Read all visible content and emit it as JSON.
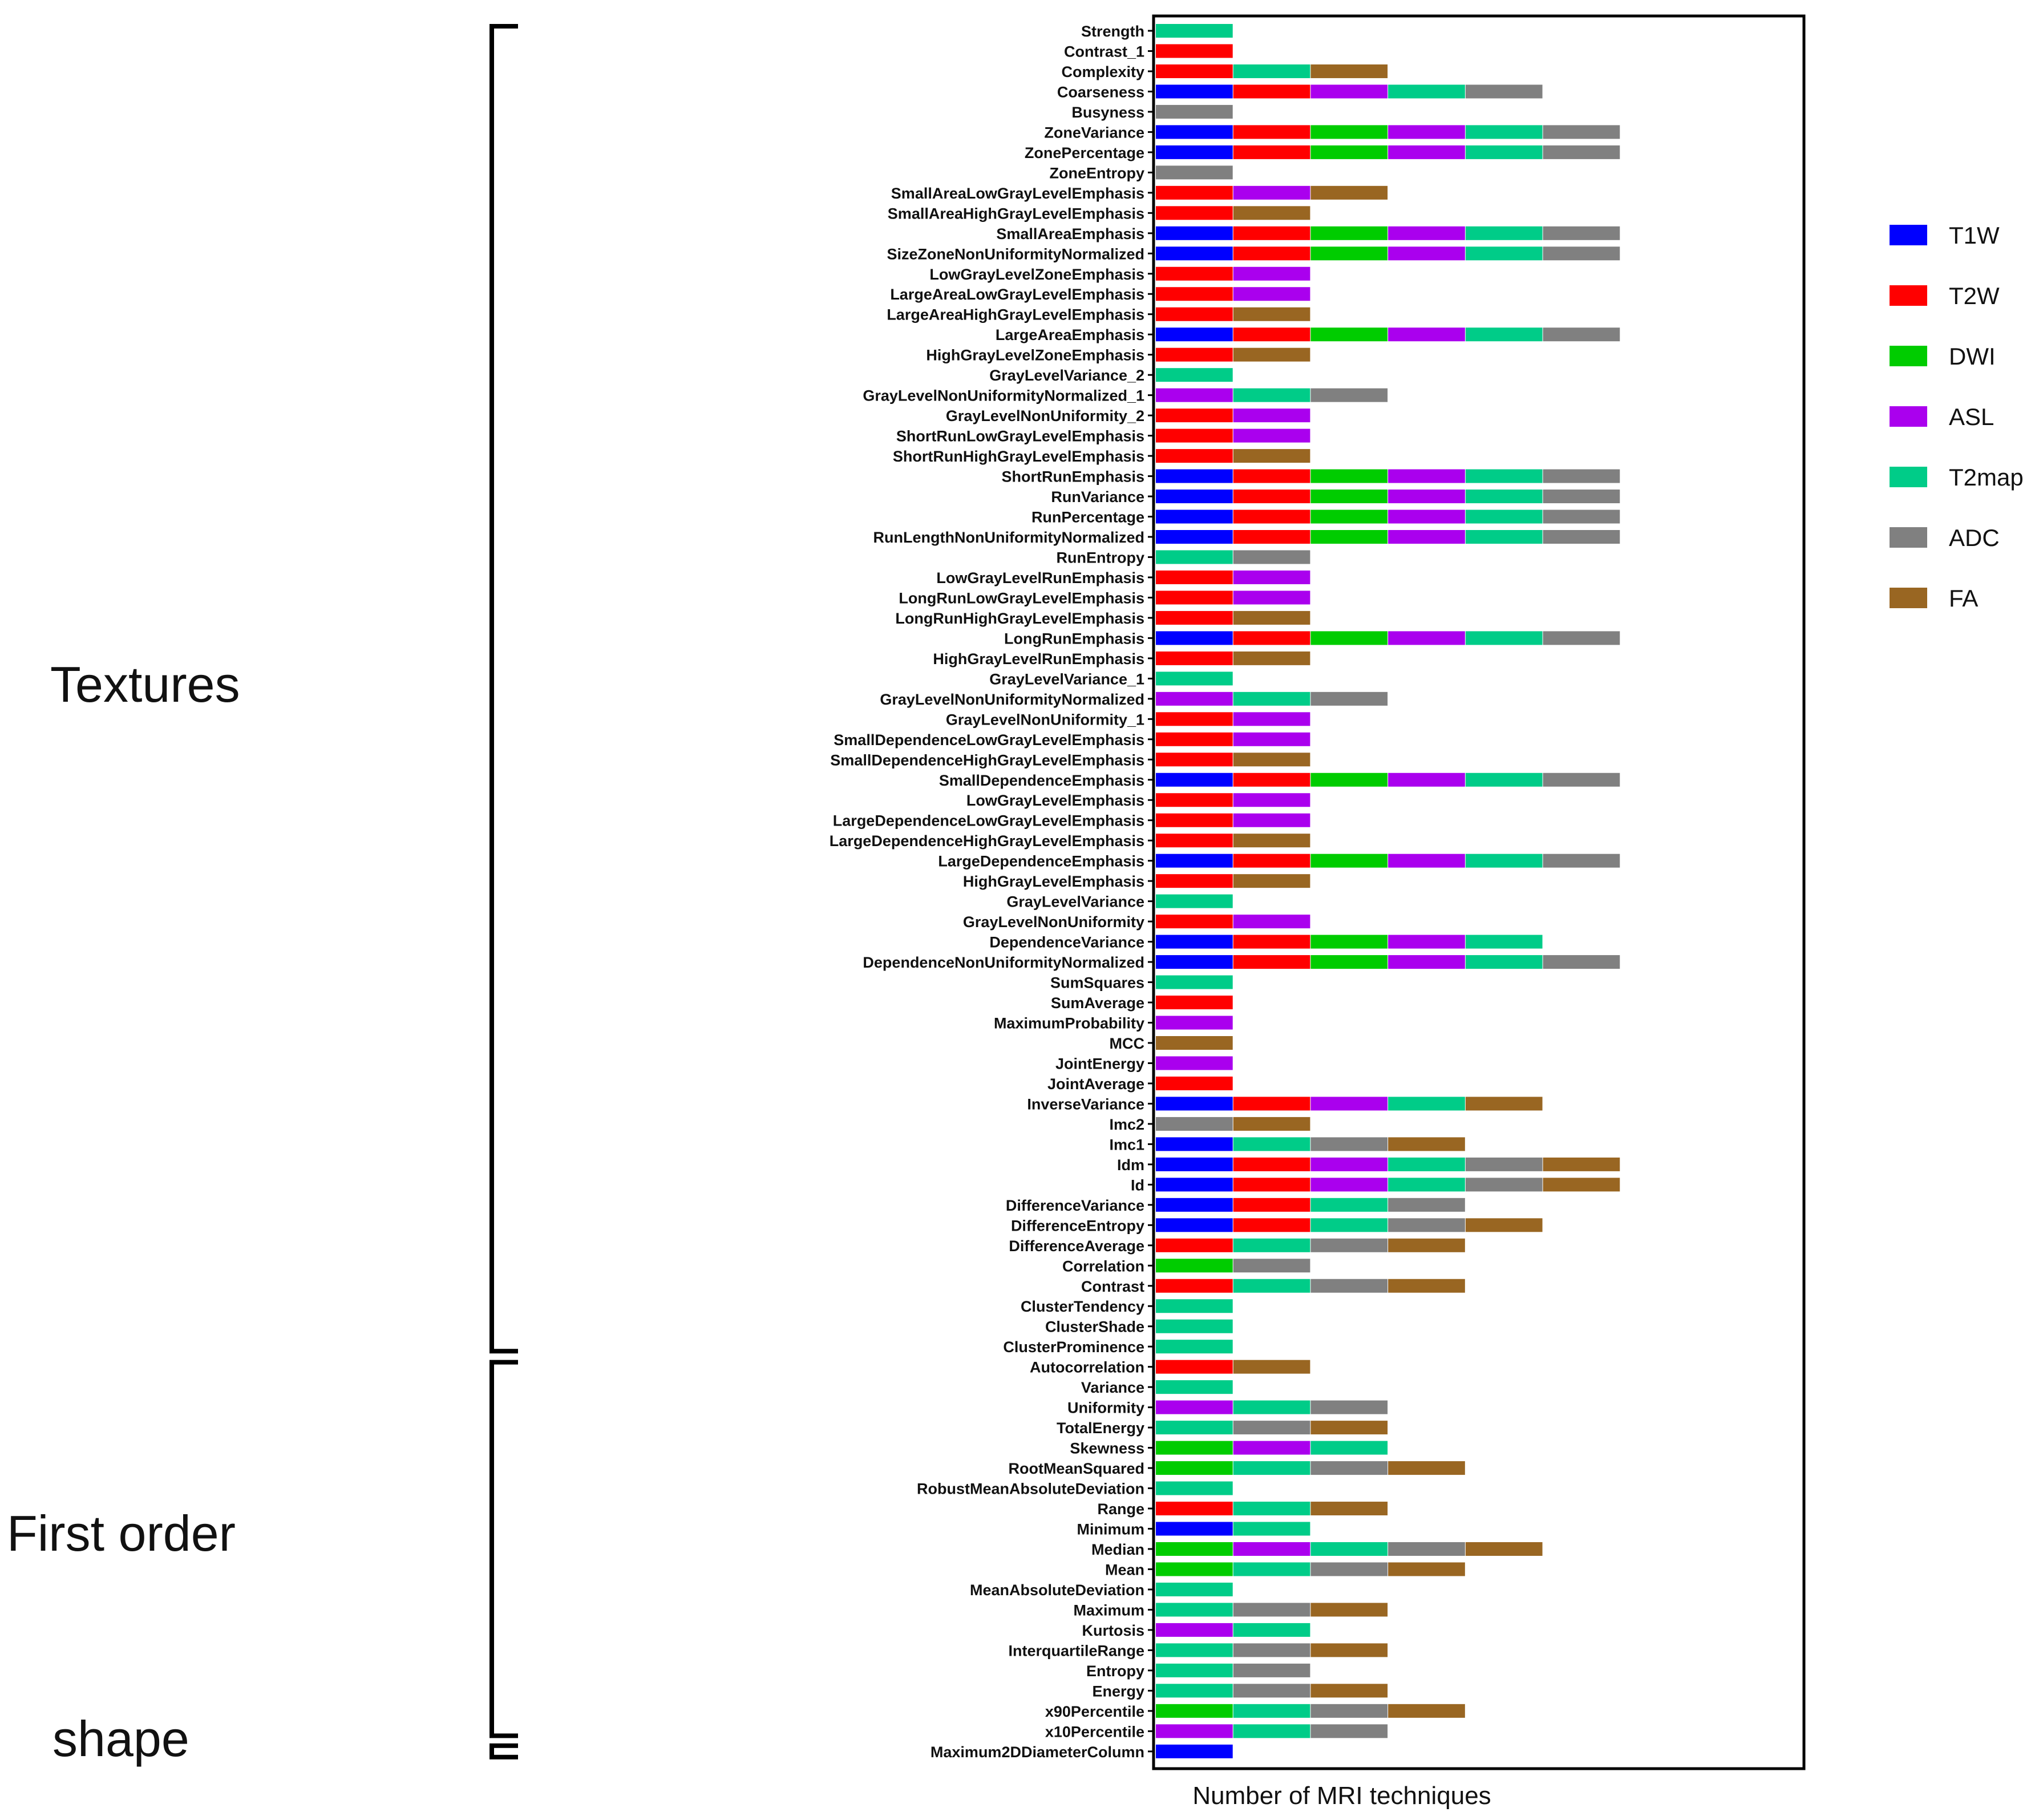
{
  "chart_data": {
    "type": "bar",
    "orientation": "horizontal",
    "stacked": true,
    "title": "",
    "xlabel": "Number of MRI techniques",
    "ylabel": "",
    "xlim": [
      0,
      8.4
    ],
    "grid": false,
    "legend_position": "right",
    "series": [
      {
        "name": "T1W",
        "color": "#0000ff"
      },
      {
        "name": "T2W",
        "color": "#ff0000"
      },
      {
        "name": "DWI",
        "color": "#00cc00"
      },
      {
        "name": "ASL",
        "color": "#aa00ee"
      },
      {
        "name": "T2map",
        "color": "#00cc88"
      },
      {
        "name": "ADC",
        "color": "#808080"
      },
      {
        "name": "FA",
        "color": "#996622"
      }
    ],
    "groups": [
      {
        "label": "Textures",
        "first": "Strength",
        "last": "ClusterProminence"
      },
      {
        "label": "First order",
        "first": "Autocorrelation",
        "last": "x10Percentile"
      },
      {
        "label": "shape",
        "first": "Maximum2DDiameterColumn",
        "last": "Maximum2DDiameterColumn"
      }
    ],
    "categories": [
      {
        "label": "Strength",
        "segments": [
          "T2map"
        ]
      },
      {
        "label": "Contrast_1",
        "segments": [
          "T2W"
        ]
      },
      {
        "label": "Complexity",
        "segments": [
          "T2W",
          "T2map",
          "FA"
        ]
      },
      {
        "label": "Coarseness",
        "segments": [
          "T1W",
          "T2W",
          "ASL",
          "T2map",
          "ADC"
        ]
      },
      {
        "label": "Busyness",
        "segments": [
          "ADC"
        ]
      },
      {
        "label": "ZoneVariance",
        "segments": [
          "T1W",
          "T2W",
          "DWI",
          "ASL",
          "T2map",
          "ADC"
        ]
      },
      {
        "label": "ZonePercentage",
        "segments": [
          "T1W",
          "T2W",
          "DWI",
          "ASL",
          "T2map",
          "ADC"
        ]
      },
      {
        "label": "ZoneEntropy",
        "segments": [
          "ADC"
        ]
      },
      {
        "label": "SmallAreaLowGrayLevelEmphasis",
        "segments": [
          "T2W",
          "ASL",
          "FA"
        ]
      },
      {
        "label": "SmallAreaHighGrayLevelEmphasis",
        "segments": [
          "T2W",
          "FA"
        ]
      },
      {
        "label": "SmallAreaEmphasis",
        "segments": [
          "T1W",
          "T2W",
          "DWI",
          "ASL",
          "T2map",
          "ADC"
        ]
      },
      {
        "label": "SizeZoneNonUniformityNormalized",
        "segments": [
          "T1W",
          "T2W",
          "DWI",
          "ASL",
          "T2map",
          "ADC"
        ]
      },
      {
        "label": "LowGrayLevelZoneEmphasis",
        "segments": [
          "T2W",
          "ASL"
        ]
      },
      {
        "label": "LargeAreaLowGrayLevelEmphasis",
        "segments": [
          "T2W",
          "ASL"
        ]
      },
      {
        "label": "LargeAreaHighGrayLevelEmphasis",
        "segments": [
          "T2W",
          "FA"
        ]
      },
      {
        "label": "LargeAreaEmphasis",
        "segments": [
          "T1W",
          "T2W",
          "DWI",
          "ASL",
          "T2map",
          "ADC"
        ]
      },
      {
        "label": "HighGrayLevelZoneEmphasis",
        "segments": [
          "T2W",
          "FA"
        ]
      },
      {
        "label": "GrayLevelVariance_2",
        "segments": [
          "T2map"
        ]
      },
      {
        "label": "GrayLevelNonUniformityNormalized_1",
        "segments": [
          "ASL",
          "T2map",
          "ADC"
        ]
      },
      {
        "label": "GrayLevelNonUniformity_2",
        "segments": [
          "T2W",
          "ASL"
        ]
      },
      {
        "label": "ShortRunLowGrayLevelEmphasis",
        "segments": [
          "T2W",
          "ASL"
        ]
      },
      {
        "label": "ShortRunHighGrayLevelEmphasis",
        "segments": [
          "T2W",
          "FA"
        ]
      },
      {
        "label": "ShortRunEmphasis",
        "segments": [
          "T1W",
          "T2W",
          "DWI",
          "ASL",
          "T2map",
          "ADC"
        ]
      },
      {
        "label": "RunVariance",
        "segments": [
          "T1W",
          "T2W",
          "DWI",
          "ASL",
          "T2map",
          "ADC"
        ]
      },
      {
        "label": "RunPercentage",
        "segments": [
          "T1W",
          "T2W",
          "DWI",
          "ASL",
          "T2map",
          "ADC"
        ]
      },
      {
        "label": "RunLengthNonUniformityNormalized",
        "segments": [
          "T1W",
          "T2W",
          "DWI",
          "ASL",
          "T2map",
          "ADC"
        ]
      },
      {
        "label": "RunEntropy",
        "segments": [
          "T2map",
          "ADC"
        ]
      },
      {
        "label": "LowGrayLevelRunEmphasis",
        "segments": [
          "T2W",
          "ASL"
        ]
      },
      {
        "label": "LongRunLowGrayLevelEmphasis",
        "segments": [
          "T2W",
          "ASL"
        ]
      },
      {
        "label": "LongRunHighGrayLevelEmphasis",
        "segments": [
          "T2W",
          "FA"
        ]
      },
      {
        "label": "LongRunEmphasis",
        "segments": [
          "T1W",
          "T2W",
          "DWI",
          "ASL",
          "T2map",
          "ADC"
        ]
      },
      {
        "label": "HighGrayLevelRunEmphasis",
        "segments": [
          "T2W",
          "FA"
        ]
      },
      {
        "label": "GrayLevelVariance_1",
        "segments": [
          "T2map"
        ]
      },
      {
        "label": "GrayLevelNonUniformityNormalized",
        "segments": [
          "ASL",
          "T2map",
          "ADC"
        ]
      },
      {
        "label": "GrayLevelNonUniformity_1",
        "segments": [
          "T2W",
          "ASL"
        ]
      },
      {
        "label": "SmallDependenceLowGrayLevelEmphasis",
        "segments": [
          "T2W",
          "ASL"
        ]
      },
      {
        "label": "SmallDependenceHighGrayLevelEmphasis",
        "segments": [
          "T2W",
          "FA"
        ]
      },
      {
        "label": "SmallDependenceEmphasis",
        "segments": [
          "T1W",
          "T2W",
          "DWI",
          "ASL",
          "T2map",
          "ADC"
        ]
      },
      {
        "label": "LowGrayLevelEmphasis",
        "segments": [
          "T2W",
          "ASL"
        ]
      },
      {
        "label": "LargeDependenceLowGrayLevelEmphasis",
        "segments": [
          "T2W",
          "ASL"
        ]
      },
      {
        "label": "LargeDependenceHighGrayLevelEmphasis",
        "segments": [
          "T2W",
          "FA"
        ]
      },
      {
        "label": "LargeDependenceEmphasis",
        "segments": [
          "T1W",
          "T2W",
          "DWI",
          "ASL",
          "T2map",
          "ADC"
        ]
      },
      {
        "label": "HighGrayLevelEmphasis",
        "segments": [
          "T2W",
          "FA"
        ]
      },
      {
        "label": "GrayLevelVariance",
        "segments": [
          "T2map"
        ]
      },
      {
        "label": "GrayLevelNonUniformity",
        "segments": [
          "T2W",
          "ASL"
        ]
      },
      {
        "label": "DependenceVariance",
        "segments": [
          "T1W",
          "T2W",
          "DWI",
          "ASL",
          "T2map"
        ]
      },
      {
        "label": "DependenceNonUniformityNormalized",
        "segments": [
          "T1W",
          "T2W",
          "DWI",
          "ASL",
          "T2map",
          "ADC"
        ]
      },
      {
        "label": "SumSquares",
        "segments": [
          "T2map"
        ]
      },
      {
        "label": "SumAverage",
        "segments": [
          "T2W"
        ]
      },
      {
        "label": "MaximumProbability",
        "segments": [
          "ASL"
        ]
      },
      {
        "label": "MCC",
        "segments": [
          "FA"
        ]
      },
      {
        "label": "JointEnergy",
        "segments": [
          "ASL"
        ]
      },
      {
        "label": "JointAverage",
        "segments": [
          "T2W"
        ]
      },
      {
        "label": "InverseVariance",
        "segments": [
          "T1W",
          "T2W",
          "ASL",
          "T2map",
          "FA"
        ]
      },
      {
        "label": "Imc2",
        "segments": [
          "ADC",
          "FA"
        ]
      },
      {
        "label": "Imc1",
        "segments": [
          "T1W",
          "T2map",
          "ADC",
          "FA"
        ]
      },
      {
        "label": "Idm",
        "segments": [
          "T1W",
          "T2W",
          "ASL",
          "T2map",
          "ADC",
          "FA"
        ]
      },
      {
        "label": "Id",
        "segments": [
          "T1W",
          "T2W",
          "ASL",
          "T2map",
          "ADC",
          "FA"
        ]
      },
      {
        "label": "DifferenceVariance",
        "segments": [
          "T1W",
          "T2W",
          "T2map",
          "ADC"
        ]
      },
      {
        "label": "DifferenceEntropy",
        "segments": [
          "T1W",
          "T2W",
          "T2map",
          "ADC",
          "FA"
        ]
      },
      {
        "label": "DifferenceAverage",
        "segments": [
          "T2W",
          "T2map",
          "ADC",
          "FA"
        ]
      },
      {
        "label": "Correlation",
        "segments": [
          "DWI",
          "ADC"
        ]
      },
      {
        "label": "Contrast",
        "segments": [
          "T2W",
          "T2map",
          "ADC",
          "FA"
        ]
      },
      {
        "label": "ClusterTendency",
        "segments": [
          "T2map"
        ]
      },
      {
        "label": "ClusterShade",
        "segments": [
          "T2map"
        ]
      },
      {
        "label": "ClusterProminence",
        "segments": [
          "T2map"
        ]
      },
      {
        "label": "Autocorrelation",
        "segments": [
          "T2W",
          "FA"
        ]
      },
      {
        "label": "Variance",
        "segments": [
          "T2map"
        ]
      },
      {
        "label": "Uniformity",
        "segments": [
          "ASL",
          "T2map",
          "ADC"
        ]
      },
      {
        "label": "TotalEnergy",
        "segments": [
          "T2map",
          "ADC",
          "FA"
        ]
      },
      {
        "label": "Skewness",
        "segments": [
          "DWI",
          "ASL",
          "T2map"
        ]
      },
      {
        "label": "RootMeanSquared",
        "segments": [
          "DWI",
          "T2map",
          "ADC",
          "FA"
        ]
      },
      {
        "label": "RobustMeanAbsoluteDeviation",
        "segments": [
          "T2map"
        ]
      },
      {
        "label": "Range",
        "segments": [
          "T2W",
          "T2map",
          "FA"
        ]
      },
      {
        "label": "Minimum",
        "segments": [
          "T1W",
          "T2map"
        ]
      },
      {
        "label": "Median",
        "segments": [
          "DWI",
          "ASL",
          "T2map",
          "ADC",
          "FA"
        ]
      },
      {
        "label": "Mean",
        "segments": [
          "DWI",
          "T2map",
          "ADC",
          "FA"
        ]
      },
      {
        "label": "MeanAbsoluteDeviation",
        "segments": [
          "T2map"
        ]
      },
      {
        "label": "Maximum",
        "segments": [
          "T2map",
          "ADC",
          "FA"
        ]
      },
      {
        "label": "Kurtosis",
        "segments": [
          "ASL",
          "T2map"
        ]
      },
      {
        "label": "InterquartileRange",
        "segments": [
          "T2map",
          "ADC",
          "FA"
        ]
      },
      {
        "label": "Entropy",
        "segments": [
          "T2map",
          "ADC"
        ]
      },
      {
        "label": "Energy",
        "segments": [
          "T2map",
          "ADC",
          "FA"
        ]
      },
      {
        "label": "x90Percentile",
        "segments": [
          "DWI",
          "T2map",
          "ADC",
          "FA"
        ]
      },
      {
        "label": "x10Percentile",
        "segments": [
          "ASL",
          "T2map",
          "ADC"
        ]
      },
      {
        "label": "Maximum2DDiameterColumn",
        "segments": [
          "T1W"
        ]
      }
    ]
  }
}
